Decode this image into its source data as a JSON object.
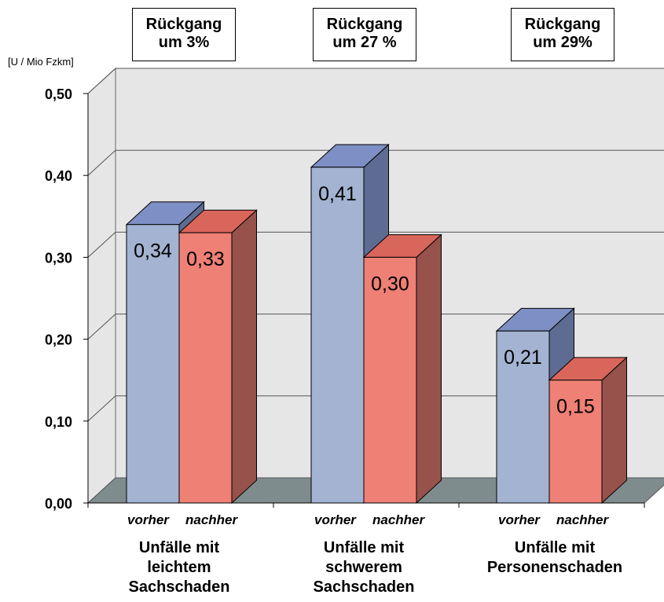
{
  "chart_data": {
    "type": "bar",
    "ylabel": "[U / Mio Fzkm]",
    "ylim": [
      0,
      0.5
    ],
    "yticks": [
      "0,00",
      "0,10",
      "0,20",
      "0,30",
      "0,40",
      "0,50"
    ],
    "categories": [
      [
        "Unfälle mit",
        "leichtem",
        "Sachschaden"
      ],
      [
        "Unfälle mit",
        "schwerem",
        "Sachschaden"
      ],
      [
        "Unfälle mit",
        "Personenschaden"
      ]
    ],
    "sub_labels": [
      "vorher",
      "nachher"
    ],
    "series": [
      {
        "name": "vorher",
        "values": [
          0.34,
          0.41,
          0.21
        ],
        "labels": [
          "0,34",
          "0,41",
          "0,21"
        ],
        "color": "#a3b3d1"
      },
      {
        "name": "nachher",
        "values": [
          0.33,
          0.3,
          0.15
        ],
        "labels": [
          "0,33",
          "0,30",
          "0,15"
        ],
        "color": "#ee8075"
      }
    ],
    "annotations": [
      [
        "Rückgang",
        "um 3%"
      ],
      [
        "Rückgang",
        "um 27 %"
      ],
      [
        "Rückgang",
        "um 29%"
      ]
    ],
    "grid": true,
    "three_d": true
  }
}
